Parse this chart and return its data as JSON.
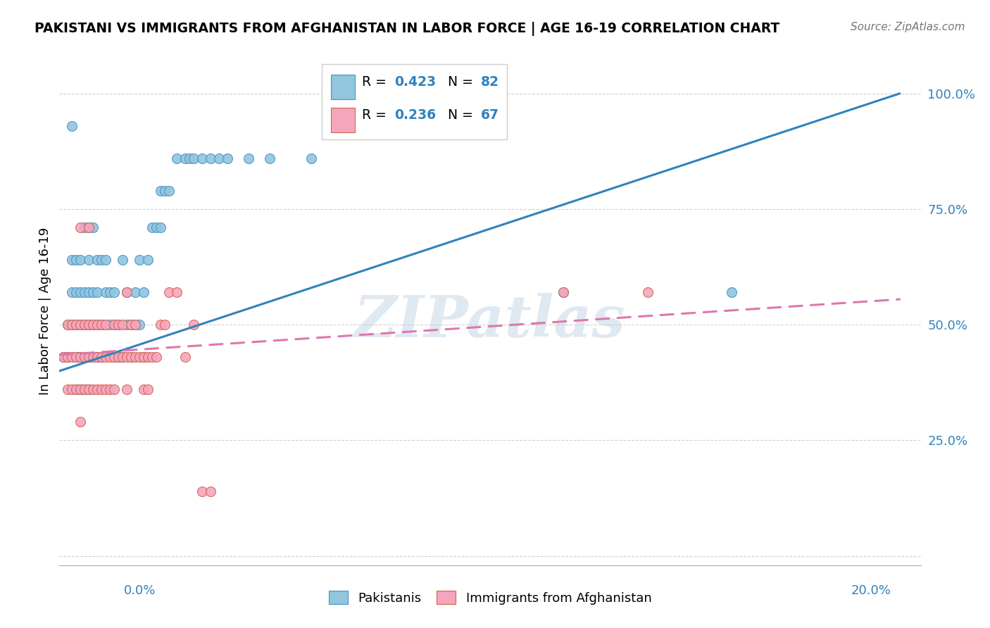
{
  "title": "PAKISTANI VS IMMIGRANTS FROM AFGHANISTAN IN LABOR FORCE | AGE 16-19 CORRELATION CHART",
  "source": "Source: ZipAtlas.com",
  "ylabel": "In Labor Force | Age 16-19",
  "watermark": "ZIPatlas",
  "blue_color": "#92c5de",
  "blue_edge_color": "#4393c3",
  "pink_color": "#f4a6bd",
  "pink_edge_color": "#d6604d",
  "blue_line_color": "#3182bd",
  "pink_line_color": "#de77ae",
  "blue_regression": [
    0.0,
    0.4,
    0.2,
    1.0
  ],
  "pink_regression": [
    0.0,
    0.435,
    0.2,
    0.555
  ],
  "xmin": 0.0,
  "xmax": 0.205,
  "ymin": -0.02,
  "ymax": 1.08,
  "y_ticks": [
    0.0,
    0.25,
    0.5,
    0.75,
    1.0
  ],
  "y_tick_labels": [
    "",
    "25.0%",
    "50.0%",
    "75.0%",
    "100.0%"
  ],
  "blue_scatter_x": [
    0.001,
    0.002,
    0.002,
    0.003,
    0.003,
    0.003,
    0.003,
    0.004,
    0.004,
    0.004,
    0.004,
    0.004,
    0.005,
    0.005,
    0.005,
    0.005,
    0.005,
    0.005,
    0.006,
    0.006,
    0.006,
    0.006,
    0.006,
    0.007,
    0.007,
    0.007,
    0.007,
    0.007,
    0.007,
    0.008,
    0.008,
    0.008,
    0.008,
    0.009,
    0.009,
    0.009,
    0.009,
    0.01,
    0.01,
    0.01,
    0.011,
    0.011,
    0.011,
    0.012,
    0.012,
    0.013,
    0.013,
    0.013,
    0.014,
    0.014,
    0.015,
    0.015,
    0.016,
    0.016,
    0.017,
    0.017,
    0.018,
    0.018,
    0.019,
    0.019,
    0.02,
    0.02,
    0.021,
    0.022,
    0.023,
    0.024,
    0.024,
    0.025,
    0.026,
    0.028,
    0.03,
    0.031,
    0.032,
    0.034,
    0.036,
    0.038,
    0.04,
    0.045,
    0.05,
    0.06,
    0.12,
    0.16
  ],
  "blue_scatter_y": [
    0.43,
    0.43,
    0.5,
    0.5,
    0.57,
    0.64,
    0.93,
    0.36,
    0.43,
    0.5,
    0.57,
    0.64,
    0.36,
    0.43,
    0.43,
    0.5,
    0.57,
    0.64,
    0.36,
    0.43,
    0.5,
    0.57,
    0.71,
    0.36,
    0.43,
    0.5,
    0.57,
    0.64,
    0.71,
    0.43,
    0.5,
    0.57,
    0.71,
    0.43,
    0.5,
    0.57,
    0.64,
    0.43,
    0.5,
    0.64,
    0.5,
    0.57,
    0.64,
    0.5,
    0.57,
    0.43,
    0.5,
    0.57,
    0.43,
    0.5,
    0.43,
    0.64,
    0.5,
    0.57,
    0.43,
    0.5,
    0.5,
    0.57,
    0.5,
    0.64,
    0.43,
    0.57,
    0.64,
    0.71,
    0.71,
    0.71,
    0.79,
    0.79,
    0.79,
    0.86,
    0.86,
    0.86,
    0.86,
    0.86,
    0.86,
    0.86,
    0.86,
    0.86,
    0.86,
    0.86,
    0.57,
    0.57
  ],
  "pink_scatter_x": [
    0.001,
    0.002,
    0.002,
    0.002,
    0.003,
    0.003,
    0.003,
    0.004,
    0.004,
    0.004,
    0.005,
    0.005,
    0.005,
    0.005,
    0.005,
    0.006,
    0.006,
    0.006,
    0.007,
    0.007,
    0.007,
    0.007,
    0.008,
    0.008,
    0.008,
    0.009,
    0.009,
    0.009,
    0.01,
    0.01,
    0.01,
    0.011,
    0.011,
    0.011,
    0.012,
    0.012,
    0.013,
    0.013,
    0.013,
    0.014,
    0.014,
    0.015,
    0.015,
    0.016,
    0.016,
    0.016,
    0.017,
    0.017,
    0.018,
    0.018,
    0.019,
    0.02,
    0.02,
    0.021,
    0.021,
    0.022,
    0.023,
    0.024,
    0.025,
    0.026,
    0.028,
    0.03,
    0.032,
    0.034,
    0.036,
    0.12,
    0.14
  ],
  "pink_scatter_y": [
    0.43,
    0.36,
    0.43,
    0.5,
    0.36,
    0.43,
    0.5,
    0.36,
    0.43,
    0.5,
    0.29,
    0.36,
    0.43,
    0.5,
    0.71,
    0.36,
    0.43,
    0.5,
    0.36,
    0.43,
    0.5,
    0.71,
    0.36,
    0.43,
    0.5,
    0.36,
    0.43,
    0.5,
    0.36,
    0.43,
    0.5,
    0.36,
    0.43,
    0.5,
    0.36,
    0.43,
    0.36,
    0.43,
    0.5,
    0.43,
    0.5,
    0.43,
    0.5,
    0.36,
    0.43,
    0.57,
    0.43,
    0.5,
    0.43,
    0.5,
    0.43,
    0.36,
    0.43,
    0.36,
    0.43,
    0.43,
    0.43,
    0.5,
    0.5,
    0.57,
    0.57,
    0.43,
    0.5,
    0.14,
    0.14,
    0.57,
    0.57
  ]
}
